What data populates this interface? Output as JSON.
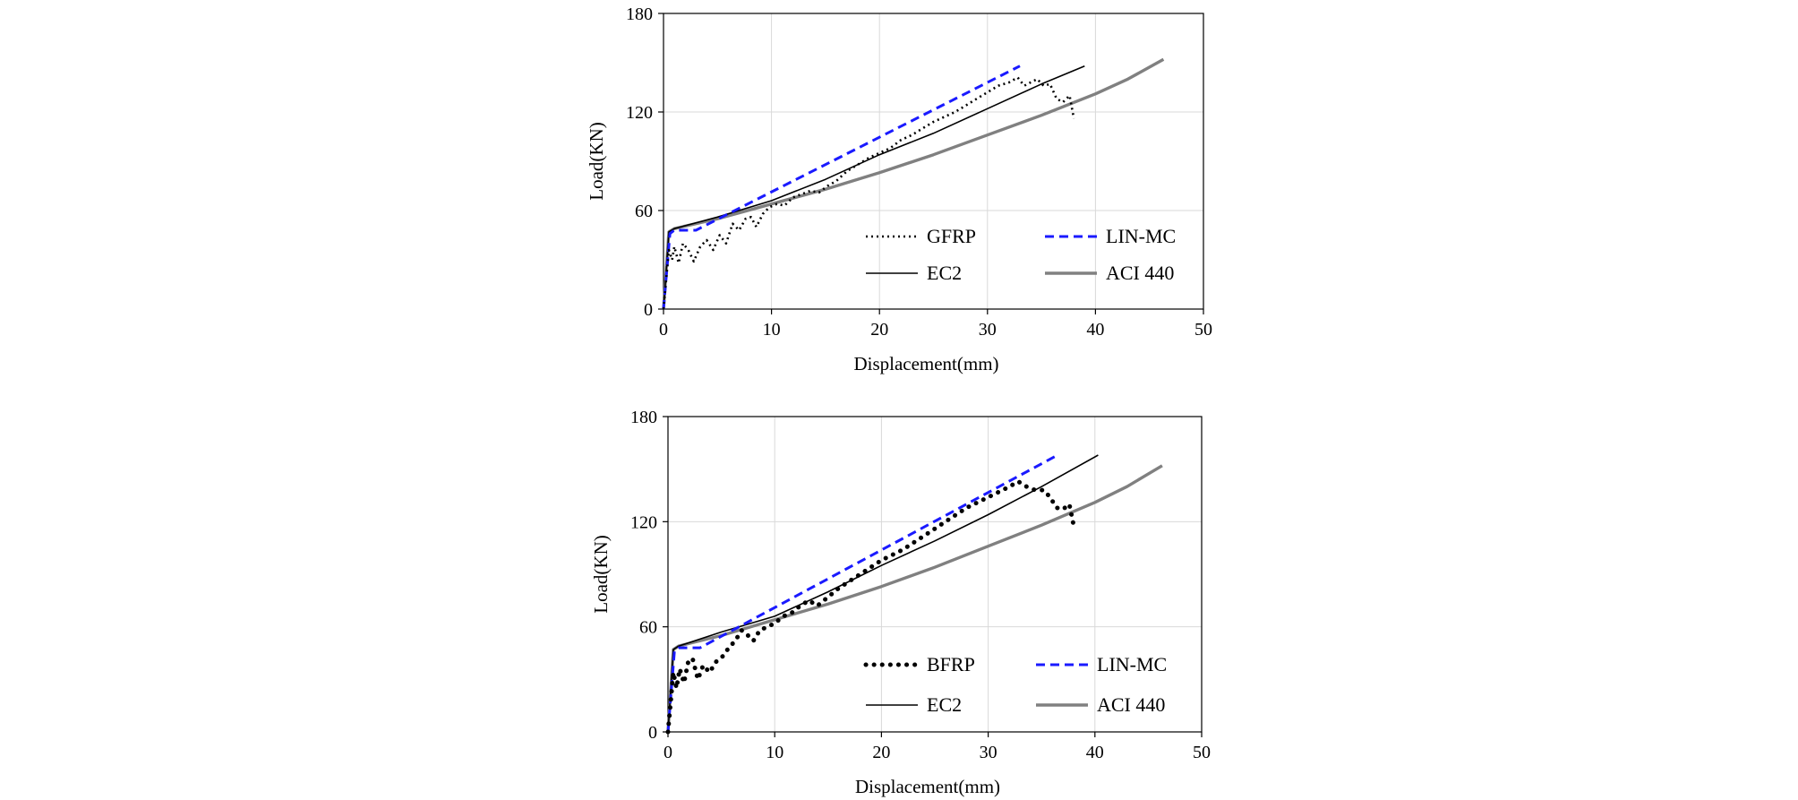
{
  "colors": {
    "experimental": "#000000",
    "lin_mc": "#1a1aff",
    "ec2": "#000000",
    "aci440": "#808080",
    "grid": "#d9d9d9",
    "axes": "#000000"
  },
  "chart_data": [
    {
      "type": "line",
      "title": "",
      "xlabel": "Displacement(mm)",
      "ylabel": "Load(KN)",
      "xlim": [
        0,
        50
      ],
      "ylim": [
        0,
        180
      ],
      "xticks": [
        "0",
        "10",
        "20",
        "30",
        "40",
        "50"
      ],
      "yticks": [
        "0",
        "60",
        "120",
        "180"
      ],
      "grid": true,
      "legend_position": "bottom-right",
      "series": [
        {
          "name": "GFRP",
          "style": "dotted",
          "x": [
            0,
            0.5,
            0.8,
            1.0,
            1.4,
            1.8,
            2.3,
            2.8,
            3.4,
            4.0,
            4.6,
            5.2,
            5.8,
            6.4,
            7.0,
            7.6,
            8.1,
            8.6,
            9.2,
            9.8,
            10.5,
            11.2,
            12.0,
            12.8,
            13.6,
            14.4,
            15.2,
            16.0,
            17.0,
            18.0,
            19.0,
            20.0,
            21.0,
            22.0,
            23.0,
            24.0,
            25.0,
            26.0,
            27.0,
            28.0,
            29.0,
            30.0,
            31.0,
            32.0,
            32.8,
            33.4,
            34.0,
            34.6,
            35.2,
            35.8,
            36.4,
            37.0,
            37.6,
            38.0
          ],
          "y": [
            0,
            36,
            30,
            38,
            28,
            40,
            36,
            29,
            38,
            42,
            36,
            45,
            40,
            52,
            48,
            55,
            56,
            50,
            58,
            62,
            64,
            63,
            68,
            70,
            72,
            71,
            75,
            78,
            84,
            88,
            92,
            95,
            98,
            103,
            106,
            110,
            114,
            117,
            120,
            124,
            128,
            132,
            136,
            138,
            141,
            136,
            138,
            140,
            136,
            137,
            128,
            126,
            130,
            116
          ]
        },
        {
          "name": "LIN-MC",
          "style": "dashed",
          "x": [
            0,
            0.6,
            1.0,
            3.0,
            33.0
          ],
          "y": [
            0,
            46,
            48,
            48,
            148
          ]
        },
        {
          "name": "EC2",
          "style": "thin-solid",
          "x": [
            0,
            0.5,
            1.0,
            5.0,
            10.0,
            15.0,
            20.0,
            25.0,
            30.0,
            35.0,
            39.0
          ],
          "y": [
            0,
            47,
            49,
            56,
            66,
            79,
            94,
            107,
            122,
            137,
            148
          ]
        },
        {
          "name": "ACI 440",
          "style": "thick-solid",
          "x": [
            0,
            0.5,
            1.0,
            5.0,
            10.0,
            15.0,
            20.0,
            25.0,
            30.0,
            35.0,
            40.0,
            43.0,
            46.3
          ],
          "y": [
            0,
            47,
            49,
            55,
            64,
            73,
            83,
            94,
            106,
            118,
            131,
            140,
            152
          ]
        }
      ]
    },
    {
      "type": "line",
      "title": "",
      "xlabel": "Displacement(mm)",
      "ylabel": "Load(KN)",
      "xlim": [
        0,
        50
      ],
      "ylim": [
        0,
        180
      ],
      "xticks": [
        "0",
        "10",
        "20",
        "30",
        "40",
        "50"
      ],
      "yticks": [
        "0",
        "60",
        "120",
        "180"
      ],
      "grid": true,
      "legend_position": "bottom-right",
      "series": [
        {
          "name": "BFRP",
          "style": "heavy-dotted",
          "x": [
            0,
            0.5,
            0.8,
            1.1,
            1.5,
            1.9,
            2.3,
            2.8,
            3.3,
            3.9,
            4.5,
            5.1,
            5.7,
            6.3,
            6.9,
            7.5,
            8.0,
            8.6,
            9.3,
            10.0,
            10.8,
            11.6,
            12.4,
            13.2,
            14.0,
            15.0,
            16.0,
            17.0,
            18.0,
            19.0,
            20.0,
            21.0,
            22.0,
            23.0,
            24.0,
            25.0,
            26.0,
            27.0,
            28.0,
            29.0,
            30.0,
            31.0,
            32.0,
            32.8,
            33.6,
            34.4,
            35.2,
            35.8,
            36.4,
            37.0,
            37.6,
            38.0
          ],
          "y": [
            0,
            34,
            25,
            36,
            28,
            40,
            42,
            30,
            38,
            34,
            40,
            43,
            48,
            52,
            58,
            55,
            52,
            58,
            60,
            62,
            66,
            68,
            72,
            75,
            72,
            77,
            82,
            86,
            90,
            94,
            98,
            101,
            104,
            108,
            112,
            116,
            120,
            124,
            128,
            131,
            134,
            137,
            140,
            143,
            140,
            138,
            138,
            134,
            128,
            127,
            130,
            118
          ]
        },
        {
          "name": "LIN-MC",
          "style": "dashed",
          "x": [
            0,
            0.6,
            1.0,
            3.0,
            36.5
          ],
          "y": [
            0,
            46,
            48,
            48,
            158
          ]
        },
        {
          "name": "EC2",
          "style": "thin-solid",
          "x": [
            0,
            0.5,
            1.0,
            5.0,
            10.0,
            15.0,
            20.0,
            25.0,
            30.0,
            35.0,
            40.3
          ],
          "y": [
            0,
            47,
            49,
            57,
            66,
            80,
            95,
            109,
            124,
            140,
            158
          ]
        },
        {
          "name": "ACI 440",
          "style": "thick-solid",
          "x": [
            0,
            0.5,
            1.0,
            5.0,
            10.0,
            15.0,
            20.0,
            25.0,
            30.0,
            35.0,
            40.0,
            43.0,
            46.3
          ],
          "y": [
            0,
            47,
            49,
            55,
            64,
            73,
            83,
            94,
            106,
            118,
            131,
            140,
            152
          ]
        }
      ]
    }
  ]
}
